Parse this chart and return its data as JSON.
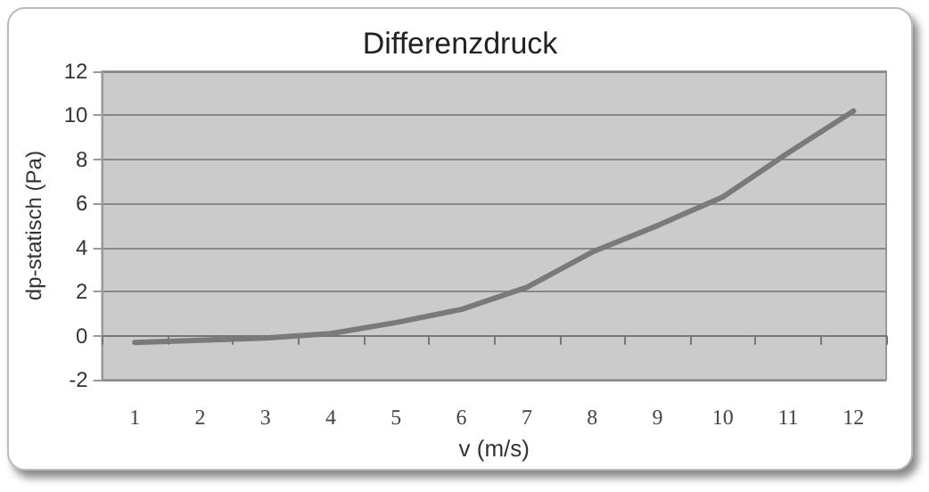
{
  "chart_data": {
    "type": "line",
    "title": "Differenzdruck",
    "xlabel": "v (m/s)",
    "ylabel": "dp-statisch (Pa)",
    "categories": [
      "1",
      "2",
      "3",
      "4",
      "5",
      "6",
      "7",
      "8",
      "9",
      "10",
      "11",
      "12"
    ],
    "series": [
      {
        "color": "#7a7a7a",
        "values": [
          -0.3,
          -0.2,
          -0.1,
          0.1,
          0.6,
          1.2,
          2.2,
          3.8,
          5.0,
          6.3,
          8.3,
          10.2
        ]
      }
    ],
    "ylim": [
      -2,
      12
    ],
    "yticks": [
      -2,
      0,
      2,
      4,
      6,
      8,
      10,
      12
    ],
    "grid": "y",
    "marker": "none",
    "line_style": "solid"
  }
}
